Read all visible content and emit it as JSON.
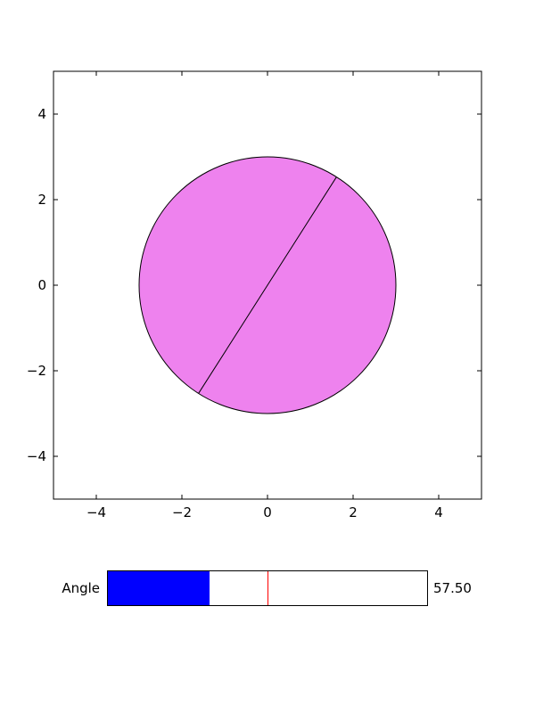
{
  "chart_data": {
    "type": "scatter",
    "title": "",
    "xlabel": "",
    "ylabel": "",
    "xlim": [
      -5,
      5
    ],
    "ylim": [
      -5,
      5
    ],
    "xticks": [
      -4,
      -2,
      0,
      2,
      4
    ],
    "yticks": [
      -4,
      -2,
      0,
      2,
      4
    ],
    "xtick_labels": [
      "−4",
      "−2",
      "0",
      "2",
      "4"
    ],
    "ytick_labels": [
      "−4",
      "−2",
      "0",
      "2",
      "4"
    ],
    "grid": false,
    "shapes": [
      {
        "kind": "circle",
        "center": [
          0,
          0
        ],
        "radius": 3,
        "fill_color": "#EE82EE",
        "edge_color": "#000000"
      },
      {
        "kind": "diameter",
        "angle_degrees": 57.5,
        "radius": 3,
        "color": "#000000"
      }
    ]
  },
  "slider": {
    "label": "Angle",
    "value": 57.5,
    "value_text": "57.50",
    "min": 0,
    "max": 180,
    "initial": 90,
    "fill_color": "#0000FF",
    "init_line_color": "#FF0000"
  }
}
